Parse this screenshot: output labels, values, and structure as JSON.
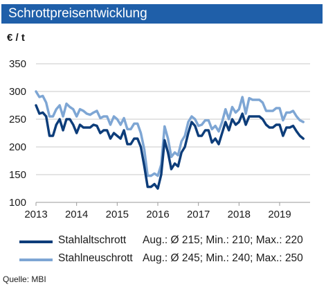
{
  "chart_data": {
    "type": "line",
    "title": "Schrottpreisentwicklung",
    "ylabel": "€ / t",
    "ylim": [
      100,
      350
    ],
    "yticks": [
      100,
      150,
      200,
      250,
      300,
      350
    ],
    "xlim": [
      2013,
      2019.75
    ],
    "xticks": [
      "2013",
      "2014",
      "2015",
      "2016",
      "2017",
      "2018",
      "2019"
    ],
    "grid": "horizontal",
    "legend_position": "bottom",
    "series": [
      {
        "name": "Stahlaltschrott",
        "stats": "Aug.: Ø 215; Min.: 210; Max.: 220",
        "color": "#0d3d7a",
        "x": [
          2013.0,
          2013.083,
          2013.167,
          2013.25,
          2013.333,
          2013.417,
          2013.5,
          2013.583,
          2013.667,
          2013.75,
          2013.833,
          2013.917,
          2014.0,
          2014.083,
          2014.167,
          2014.25,
          2014.333,
          2014.417,
          2014.5,
          2014.583,
          2014.667,
          2014.75,
          2014.833,
          2014.917,
          2015.0,
          2015.083,
          2015.167,
          2015.25,
          2015.333,
          2015.417,
          2015.5,
          2015.583,
          2015.667,
          2015.75,
          2015.833,
          2015.917,
          2016.0,
          2016.083,
          2016.167,
          2016.25,
          2016.333,
          2016.417,
          2016.5,
          2016.583,
          2016.667,
          2016.75,
          2016.833,
          2016.917,
          2017.0,
          2017.083,
          2017.167,
          2017.25,
          2017.333,
          2017.417,
          2017.5,
          2017.583,
          2017.667,
          2017.75,
          2017.833,
          2017.917,
          2018.0,
          2018.083,
          2018.167,
          2018.25,
          2018.333,
          2018.417,
          2018.5,
          2018.583,
          2018.667,
          2018.75,
          2018.833,
          2018.917,
          2019.0,
          2019.083,
          2019.167,
          2019.25,
          2019.333,
          2019.417,
          2019.5,
          2019.583
        ],
        "y": [
          275,
          260,
          262,
          255,
          220,
          220,
          240,
          250,
          230,
          250,
          250,
          240,
          225,
          240,
          235,
          235,
          235,
          240,
          238,
          225,
          230,
          230,
          215,
          225,
          220,
          215,
          230,
          205,
          205,
          215,
          215,
          200,
          165,
          128,
          128,
          133,
          125,
          150,
          212,
          190,
          160,
          170,
          165,
          190,
          200,
          225,
          245,
          238,
          220,
          220,
          230,
          230,
          208,
          215,
          205,
          225,
          245,
          230,
          250,
          240,
          245,
          260,
          240,
          255,
          255,
          255,
          255,
          250,
          240,
          235,
          235,
          240,
          240,
          220,
          235,
          235,
          238,
          228,
          220,
          215
        ]
      },
      {
        "name": "Stahlneuschrott",
        "stats": "Aug.: Ø 245; Min.: 240; Max.: 250",
        "color": "#7ea6d4",
        "x": [
          2013.0,
          2013.083,
          2013.167,
          2013.25,
          2013.333,
          2013.417,
          2013.5,
          2013.583,
          2013.667,
          2013.75,
          2013.833,
          2013.917,
          2014.0,
          2014.083,
          2014.167,
          2014.25,
          2014.333,
          2014.417,
          2014.5,
          2014.583,
          2014.667,
          2014.75,
          2014.833,
          2014.917,
          2015.0,
          2015.083,
          2015.167,
          2015.25,
          2015.333,
          2015.417,
          2015.5,
          2015.583,
          2015.667,
          2015.75,
          2015.833,
          2015.917,
          2016.0,
          2016.083,
          2016.167,
          2016.25,
          2016.333,
          2016.417,
          2016.5,
          2016.583,
          2016.667,
          2016.75,
          2016.833,
          2016.917,
          2017.0,
          2017.083,
          2017.167,
          2017.25,
          2017.333,
          2017.417,
          2017.5,
          2017.583,
          2017.667,
          2017.75,
          2017.833,
          2017.917,
          2018.0,
          2018.083,
          2018.167,
          2018.25,
          2018.333,
          2018.417,
          2018.5,
          2018.583,
          2018.667,
          2018.75,
          2018.833,
          2018.917,
          2019.0,
          2019.083,
          2019.167,
          2019.25,
          2019.333,
          2019.417,
          2019.5,
          2019.583
        ],
        "y": [
          300,
          290,
          292,
          280,
          255,
          255,
          268,
          275,
          255,
          278,
          272,
          268,
          255,
          268,
          265,
          260,
          258,
          262,
          265,
          252,
          255,
          255,
          240,
          255,
          250,
          240,
          252,
          232,
          232,
          242,
          242,
          225,
          195,
          148,
          148,
          152,
          148,
          168,
          237,
          215,
          182,
          190,
          185,
          210,
          220,
          245,
          255,
          250,
          238,
          240,
          248,
          248,
          232,
          238,
          228,
          245,
          268,
          250,
          272,
          262,
          268,
          290,
          260,
          288,
          285,
          285,
          285,
          280,
          265,
          265,
          265,
          270,
          270,
          248,
          262,
          262,
          265,
          255,
          248,
          245
        ]
      }
    ]
  },
  "source": "Quelle: MBI"
}
